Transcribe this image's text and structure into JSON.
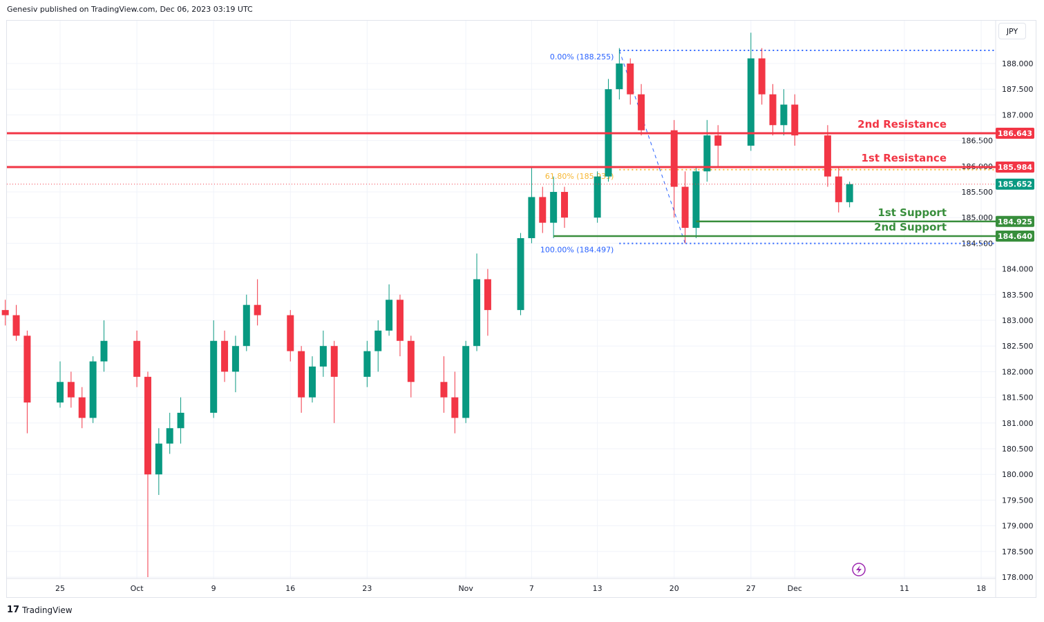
{
  "header": {
    "published": "Genesiv published on TradingView.com, Dec 06, 2023 03:19 UTC"
  },
  "footer": {
    "logo_text": "TradingView"
  },
  "currency_label": "JPY",
  "colors": {
    "up": "#089981",
    "down": "#f23645",
    "resistance": "#f23645",
    "support": "#388e3c",
    "fib": "#2962ff",
    "fib_618": "#f7b733",
    "alert": "#9c27b0"
  },
  "chart_data": {
    "type": "candlestick",
    "symbol_currency": "JPY",
    "ylim": [
      178.0,
      188.8
    ],
    "grid": true,
    "y_ticks": [
      "178.000",
      "178.500",
      "179.000",
      "179.500",
      "180.000",
      "180.500",
      "181.000",
      "181.500",
      "182.000",
      "182.500",
      "183.000",
      "183.500",
      "184.000",
      "184.500",
      "185.000",
      "185.500",
      "186.000",
      "186.500",
      "187.000",
      "187.500",
      "188.000"
    ],
    "x_ticks": [
      {
        "label": "25",
        "date": "2023-09-25"
      },
      {
        "label": "Oct",
        "date": "2023-10-02"
      },
      {
        "label": "9",
        "date": "2023-10-09"
      },
      {
        "label": "16",
        "date": "2023-10-16"
      },
      {
        "label": "23",
        "date": "2023-10-23"
      },
      {
        "label": "Nov",
        "date": "2023-11-01"
      },
      {
        "label": "7",
        "date": "2023-11-07"
      },
      {
        "label": "13",
        "date": "2023-11-13"
      },
      {
        "label": "20",
        "date": "2023-11-20"
      },
      {
        "label": "27",
        "date": "2023-11-27"
      },
      {
        "label": "Dec",
        "date": "2023-12-01"
      },
      {
        "label": "11",
        "date": "2023-12-11"
      },
      {
        "label": "18",
        "date": "2023-12-18"
      }
    ],
    "candles_columns": [
      "date",
      "open",
      "high",
      "low",
      "close"
    ],
    "candles": [
      [
        "2023-09-20",
        183.2,
        183.4,
        182.9,
        183.1
      ],
      [
        "2023-09-21",
        183.1,
        183.3,
        182.6,
        182.7
      ],
      [
        "2023-09-22",
        182.7,
        182.8,
        180.8,
        181.4
      ],
      [
        "2023-09-25",
        181.4,
        182.2,
        181.3,
        181.8
      ],
      [
        "2023-09-26",
        181.8,
        182.0,
        181.3,
        181.5
      ],
      [
        "2023-09-27",
        181.5,
        181.7,
        180.9,
        181.1
      ],
      [
        "2023-09-28",
        181.1,
        182.3,
        181.0,
        182.2
      ],
      [
        "2023-09-29",
        182.2,
        183.0,
        182.0,
        182.6
      ],
      [
        "2023-10-02",
        182.6,
        182.8,
        181.7,
        181.9
      ],
      [
        "2023-10-03",
        181.9,
        182.0,
        178.0,
        180.0
      ],
      [
        "2023-10-04",
        180.0,
        180.9,
        179.6,
        180.6
      ],
      [
        "2023-10-05",
        180.6,
        181.2,
        180.4,
        180.9
      ],
      [
        "2023-10-06",
        180.9,
        181.5,
        180.6,
        181.2
      ],
      [
        "2023-10-09",
        181.2,
        183.0,
        181.1,
        182.6
      ],
      [
        "2023-10-10",
        182.6,
        182.8,
        181.8,
        182.0
      ],
      [
        "2023-10-11",
        182.0,
        182.7,
        181.6,
        182.5
      ],
      [
        "2023-10-12",
        182.5,
        183.5,
        182.4,
        183.3
      ],
      [
        "2023-10-13",
        183.3,
        183.8,
        182.9,
        183.1
      ],
      [
        "2023-10-16",
        183.1,
        183.2,
        182.2,
        182.4
      ],
      [
        "2023-10-17",
        182.4,
        182.5,
        181.2,
        181.5
      ],
      [
        "2023-10-18",
        181.5,
        182.3,
        181.4,
        182.1
      ],
      [
        "2023-10-19",
        182.1,
        182.8,
        181.9,
        182.5
      ],
      [
        "2023-10-20",
        182.5,
        182.6,
        181.0,
        181.9
      ],
      [
        "2023-10-23",
        181.9,
        182.6,
        181.7,
        182.4
      ],
      [
        "2023-10-24",
        182.4,
        183.0,
        182.0,
        182.8
      ],
      [
        "2023-10-25",
        182.8,
        183.7,
        182.7,
        183.4
      ],
      [
        "2023-10-26",
        183.4,
        183.5,
        182.3,
        182.6
      ],
      [
        "2023-10-27",
        182.6,
        182.7,
        181.5,
        181.8
      ],
      [
        "2023-10-30",
        181.8,
        182.3,
        181.2,
        181.5
      ],
      [
        "2023-10-31",
        181.5,
        182.0,
        180.8,
        181.1
      ],
      [
        "2023-11-01",
        181.1,
        182.6,
        181.0,
        182.5
      ],
      [
        "2023-11-02",
        182.5,
        184.3,
        182.4,
        183.8
      ],
      [
        "2023-11-03",
        183.8,
        184.0,
        182.7,
        183.2
      ],
      [
        "2023-11-06",
        183.2,
        184.7,
        183.1,
        184.6
      ],
      [
        "2023-11-07",
        184.6,
        186.0,
        184.5,
        185.4
      ],
      [
        "2023-11-08",
        185.4,
        185.6,
        184.7,
        184.9
      ],
      [
        "2023-11-09",
        184.9,
        185.8,
        184.6,
        185.5
      ],
      [
        "2023-11-10",
        185.5,
        185.6,
        184.8,
        185.0
      ],
      [
        "2023-11-13",
        185.0,
        185.9,
        184.9,
        185.8
      ],
      [
        "2023-11-14",
        185.8,
        187.7,
        185.7,
        187.5
      ],
      [
        "2023-11-15",
        187.5,
        188.3,
        187.3,
        188.0
      ],
      [
        "2023-11-16",
        188.0,
        188.1,
        187.2,
        187.4
      ],
      [
        "2023-11-17",
        187.4,
        187.6,
        186.6,
        186.7
      ],
      [
        "2023-11-20",
        186.7,
        186.9,
        185.0,
        185.6
      ],
      [
        "2023-11-21",
        185.6,
        185.9,
        184.5,
        184.8
      ],
      [
        "2023-11-22",
        184.8,
        186.0,
        184.6,
        185.9
      ],
      [
        "2023-11-23",
        185.9,
        186.9,
        185.7,
        186.6
      ],
      [
        "2023-11-24",
        186.6,
        186.8,
        186.0,
        186.4
      ],
      [
        "2023-11-27",
        186.4,
        188.6,
        186.3,
        188.1
      ],
      [
        "2023-11-28",
        188.1,
        188.3,
        187.2,
        187.4
      ],
      [
        "2023-11-29",
        187.4,
        187.6,
        186.6,
        186.8
      ],
      [
        "2023-11-30",
        186.8,
        187.5,
        186.6,
        187.2
      ],
      [
        "2023-12-01",
        187.2,
        187.4,
        186.4,
        186.6
      ],
      [
        "2023-12-04",
        186.6,
        186.8,
        185.6,
        185.8
      ],
      [
        "2023-12-05",
        185.8,
        186.0,
        185.1,
        185.3
      ],
      [
        "2023-12-06",
        185.3,
        185.7,
        185.2,
        185.652
      ]
    ],
    "current_price": {
      "value": 185.652,
      "label": "185.652"
    },
    "levels": [
      {
        "name": "2nd Resistance",
        "value": 186.643,
        "label": "186.643",
        "kind": "resistance",
        "from": "2023-09-20"
      },
      {
        "name": "1st Resistance",
        "value": 185.984,
        "label": "185.984",
        "kind": "resistance",
        "from": "2023-09-20"
      },
      {
        "name": "1st Support",
        "value": 184.925,
        "label": "184.925",
        "kind": "support",
        "from": "2023-11-22"
      },
      {
        "name": "2nd Support",
        "value": 184.64,
        "label": "184.640",
        "kind": "support",
        "from": "2023-11-09"
      }
    ],
    "fibonacci": {
      "from_date": "2023-11-15",
      "to_date": "2023-11-21",
      "levels": [
        {
          "label": "0.00% (188.255)",
          "value": 188.255
        },
        {
          "label": "61.80% (185.933)",
          "value": 185.933
        },
        {
          "label": "100.00% (184.497)",
          "value": 184.497
        }
      ]
    }
  }
}
